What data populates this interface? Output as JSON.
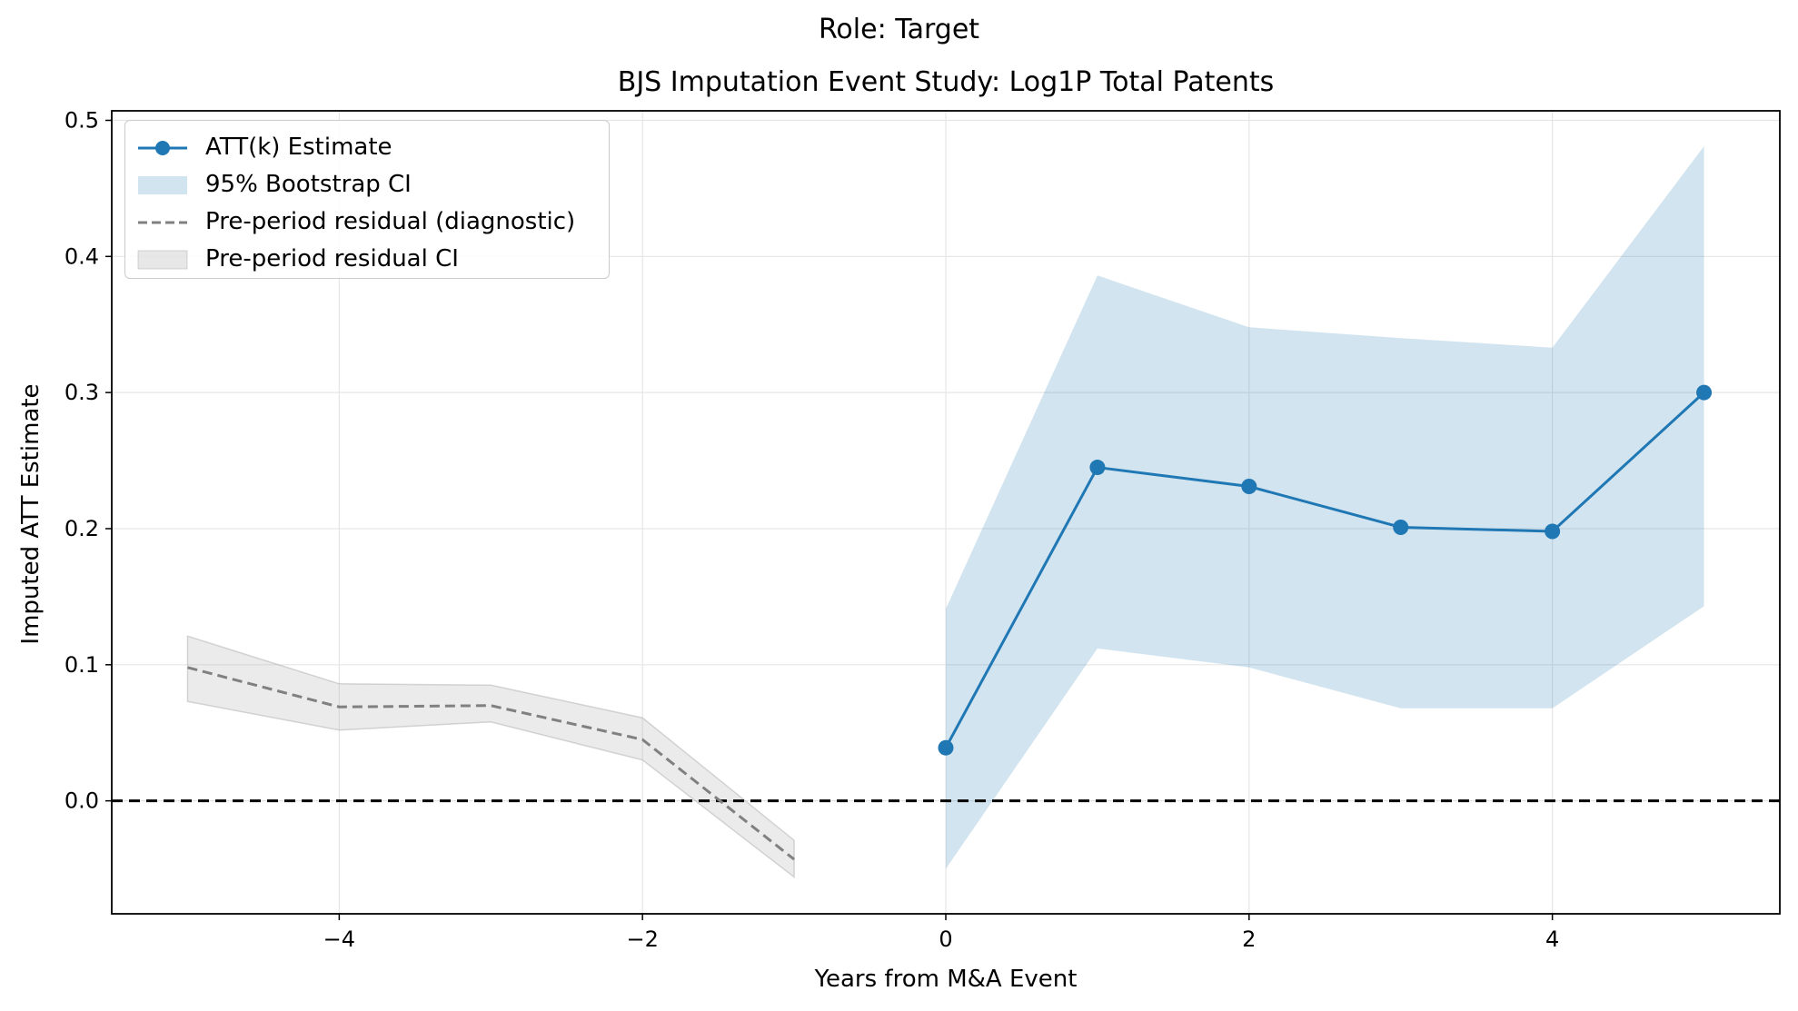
{
  "suptitle": "Role: Target",
  "chart_data": {
    "type": "line",
    "title": "BJS Imputation Event Study: Log1P Total Patents",
    "xlabel": "Years from M&A Event",
    "ylabel": "Imputed ATT Estimate",
    "xlim": [
      -5.5,
      5.5
    ],
    "ylim": [
      -0.083,
      0.507
    ],
    "xticks": [
      -4,
      -2,
      0,
      2,
      4
    ],
    "xtick_labels": [
      "−4",
      "−2",
      "0",
      "2",
      "4"
    ],
    "yticks": [
      0.0,
      0.1,
      0.2,
      0.3,
      0.4,
      0.5
    ],
    "ytick_labels": [
      "0.0",
      "0.1",
      "0.2",
      "0.3",
      "0.4",
      "0.5"
    ],
    "grid": true,
    "legend_position": "top-left",
    "reference_line": {
      "y": 0.0,
      "style": "dashed",
      "color": "#000000"
    },
    "series": [
      {
        "name": "ATT(k) Estimate",
        "kind": "line-marker",
        "color": "#1f77b4",
        "x": [
          0,
          1,
          2,
          3,
          4,
          5
        ],
        "y": [
          0.039,
          0.245,
          0.231,
          0.201,
          0.198,
          0.3
        ]
      },
      {
        "name": "95% Bootstrap CI",
        "kind": "band",
        "color": "#1f77b4",
        "opacity": 0.2,
        "x": [
          0,
          1,
          2,
          3,
          4,
          5
        ],
        "lower": [
          -0.05,
          0.112,
          0.098,
          0.068,
          0.068,
          0.143
        ],
        "upper": [
          0.141,
          0.386,
          0.348,
          0.34,
          0.333,
          0.481
        ]
      },
      {
        "name": "Pre-period residual (diagnostic)",
        "kind": "dashed-line",
        "color": "#808080",
        "x": [
          -5,
          -4,
          -3,
          -2,
          -1
        ],
        "y": [
          0.098,
          0.069,
          0.07,
          0.045,
          -0.043
        ]
      },
      {
        "name": "Pre-period residual CI",
        "kind": "band",
        "color": "#b0b0b0",
        "opacity": 0.25,
        "x": [
          -5,
          -4,
          -3,
          -2,
          -1
        ],
        "lower": [
          0.073,
          0.052,
          0.058,
          0.03,
          -0.056
        ],
        "upper": [
          0.121,
          0.086,
          0.085,
          0.061,
          -0.029
        ]
      }
    ]
  }
}
